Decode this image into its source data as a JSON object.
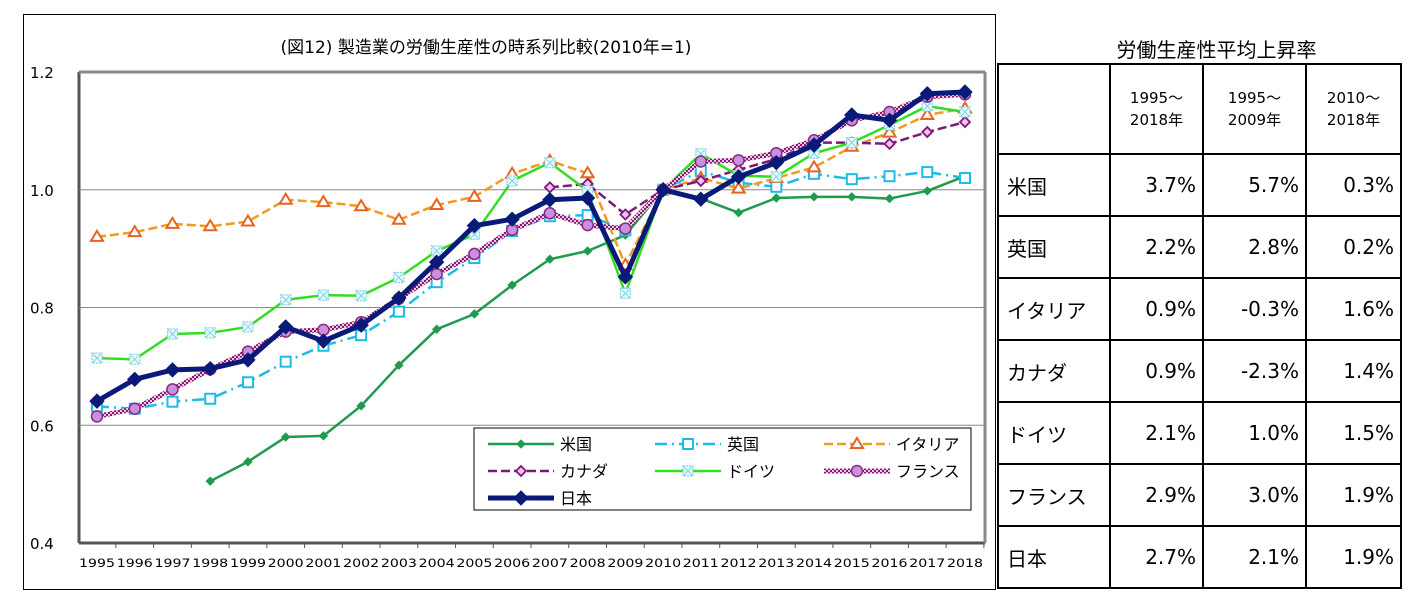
{
  "chart_data": {
    "type": "line",
    "title": "(図12) 製造業の労働生産性の時系列比較(2010年=1)",
    "xlabel": "",
    "ylabel": "",
    "ylim": [
      0.4,
      1.2
    ],
    "yticks": [
      "0.4",
      "0.6",
      "0.8",
      "1.0",
      "1.2"
    ],
    "ytick_values": [
      0.4,
      0.6,
      0.8,
      1.0,
      1.2
    ],
    "grid": true,
    "legend_position": "bottom-right",
    "x": [
      "1995",
      "1996",
      "1997",
      "1998",
      "1999",
      "2000",
      "2001",
      "2002",
      "2003",
      "2004",
      "2005",
      "2006",
      "2007",
      "2008",
      "2009",
      "2010",
      "2011",
      "2012",
      "2013",
      "2014",
      "2015",
      "2016",
      "2017",
      "2018"
    ],
    "series": [
      {
        "name": "米国",
        "color": "#1f9a4e",
        "marker": "diamond-small",
        "dash": "solid",
        "values": [
          null,
          null,
          null,
          0.505,
          0.538,
          0.58,
          0.582,
          0.633,
          0.702,
          0.763,
          0.789,
          0.838,
          0.882,
          0.896,
          0.923,
          1.0,
          0.985,
          0.961,
          0.986,
          0.988,
          0.988,
          0.985,
          0.998,
          1.023
        ]
      },
      {
        "name": "英国",
        "color": "#1ebbe6",
        "marker": "square-open",
        "dash": "dashdot",
        "values": [
          0.632,
          0.628,
          0.64,
          0.645,
          0.673,
          0.708,
          0.735,
          0.753,
          0.793,
          0.843,
          0.884,
          0.93,
          0.955,
          0.957,
          0.931,
          1.0,
          1.032,
          1.012,
          1.005,
          1.027,
          1.018,
          1.023,
          1.03,
          1.02
        ]
      },
      {
        "name": "イタリア",
        "color": "#f09a20",
        "marker": "triangle-open",
        "dash": "dashed",
        "values": [
          0.92,
          0.928,
          0.942,
          0.938,
          0.946,
          0.983,
          0.979,
          0.972,
          0.949,
          0.974,
          0.988,
          1.027,
          1.049,
          1.028,
          0.872,
          1.0,
          1.02,
          1.002,
          1.02,
          1.038,
          1.073,
          1.097,
          1.127,
          1.138
        ]
      },
      {
        "name": "カナダ",
        "color": "#7b1a7a",
        "marker": "diamond-open",
        "dash": "dashed",
        "values": [
          null,
          null,
          null,
          null,
          null,
          null,
          null,
          null,
          null,
          null,
          null,
          null,
          1.004,
          1.01,
          0.958,
          1.0,
          1.015,
          1.034,
          1.052,
          1.08,
          1.08,
          1.078,
          1.098,
          1.115
        ]
      },
      {
        "name": "ドイツ",
        "color": "#33dd22",
        "marker": "x-square",
        "dash": "solid",
        "values": [
          0.714,
          0.712,
          0.755,
          0.757,
          0.767,
          0.813,
          0.821,
          0.82,
          0.851,
          0.896,
          0.924,
          1.015,
          1.046,
          0.998,
          0.824,
          1.0,
          1.061,
          1.024,
          1.022,
          1.062,
          1.08,
          1.11,
          1.142,
          1.132
        ]
      },
      {
        "name": "フランス",
        "color": "#c080d8",
        "marker": "circle",
        "dash": "checker",
        "values": [
          0.615,
          0.628,
          0.661,
          0.695,
          0.725,
          0.759,
          0.762,
          0.775,
          0.815,
          0.857,
          0.891,
          0.932,
          0.96,
          0.94,
          0.934,
          1.0,
          1.048,
          1.05,
          1.062,
          1.084,
          1.118,
          1.132,
          1.158,
          1.162
        ]
      },
      {
        "name": "日本",
        "color": "#0a1a78",
        "marker": "diamond-filled",
        "dash": "solid-thick",
        "values": [
          0.641,
          0.678,
          0.694,
          0.696,
          0.711,
          0.767,
          0.743,
          0.77,
          0.816,
          0.877,
          0.939,
          0.95,
          0.983,
          0.986,
          0.852,
          1.0,
          0.984,
          1.022,
          1.046,
          1.076,
          1.127,
          1.118,
          1.163,
          1.166
        ]
      }
    ]
  },
  "table": {
    "title": "労働生産性平均上昇率",
    "headers": [
      "",
      [
        "1995～",
        "2018年"
      ],
      [
        "1995～",
        "2009年"
      ],
      [
        "2010～",
        "2018年"
      ]
    ],
    "rows": [
      {
        "country": "米国",
        "values": [
          "3.7%",
          "5.7%",
          "0.3%"
        ]
      },
      {
        "country": "英国",
        "values": [
          "2.2%",
          "2.8%",
          "0.2%"
        ]
      },
      {
        "country": "イタリア",
        "values": [
          "0.9%",
          "-0.3%",
          "1.6%"
        ]
      },
      {
        "country": "カナダ",
        "values": [
          "0.9%",
          "-2.3%",
          "1.4%"
        ]
      },
      {
        "country": "ドイツ",
        "values": [
          "2.1%",
          "1.0%",
          "1.5%"
        ]
      },
      {
        "country": "フランス",
        "values": [
          "2.9%",
          "3.0%",
          "1.9%"
        ]
      },
      {
        "country": "日本",
        "values": [
          "2.7%",
          "2.1%",
          "1.9%"
        ]
      }
    ]
  }
}
